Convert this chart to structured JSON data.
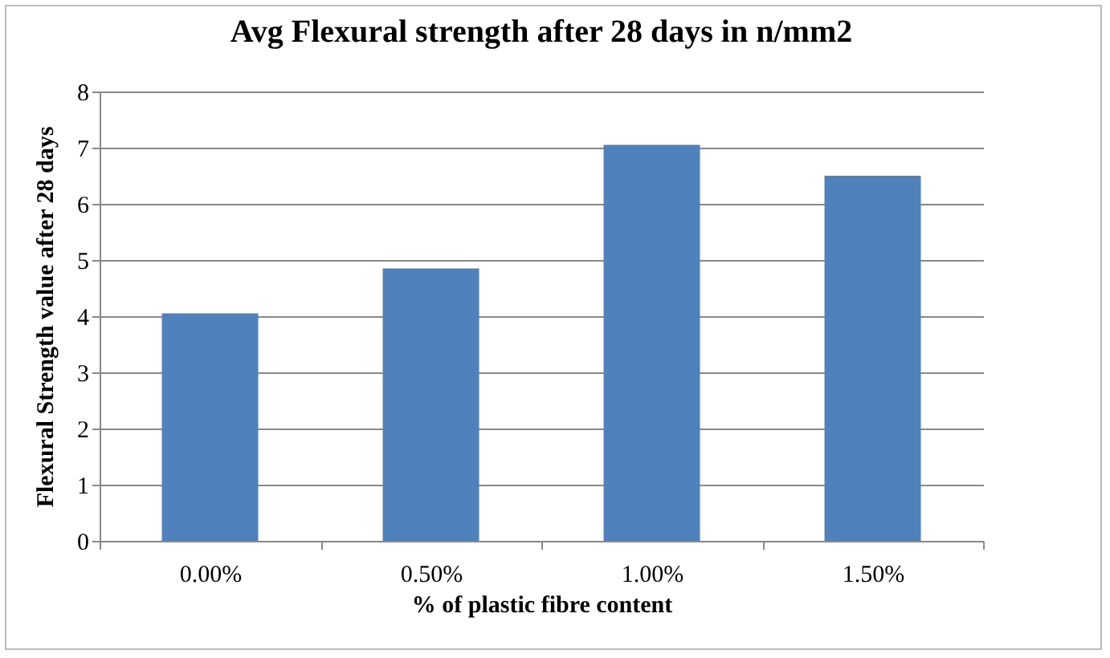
{
  "chart_data": {
    "type": "bar",
    "title": "Avg Flexural strength after 28 days in n/mm2",
    "categories": [
      "0.00%",
      "0.50%",
      "1.00%",
      "1.50%"
    ],
    "values": [
      4.05,
      4.85,
      7.05,
      6.5
    ],
    "color": "#4f81bd",
    "xlabel": "% of plastic fibre content",
    "ylabel": "Flexural Strength value after 28 days",
    "ylim": [
      0,
      8
    ],
    "yticks": [
      0,
      1,
      2,
      3,
      4,
      5,
      6,
      7,
      8
    ],
    "grid": "y"
  }
}
